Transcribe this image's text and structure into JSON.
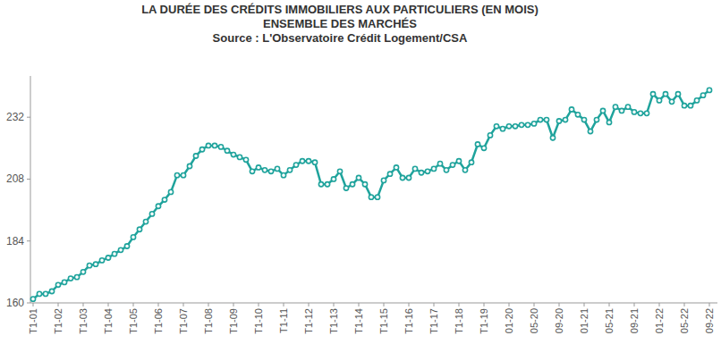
{
  "chart_data": {
    "type": "line",
    "title": "LA DURÉE DES CRÉDITS IMMOBILIERS AUX PARTICULIERS (EN MOIS)",
    "subtitle": "ENSEMBLE DES MARCHÉS",
    "source": "Source : L'Observatoire Crédit Logement/CSA",
    "categories": [
      "T1-01",
      null,
      null,
      null,
      "T1-02",
      null,
      null,
      null,
      "T1-03",
      null,
      null,
      null,
      "T1-04",
      null,
      null,
      null,
      "T1-05",
      null,
      null,
      null,
      "T1-06",
      null,
      null,
      null,
      "T1-07",
      null,
      null,
      null,
      "T1-08",
      null,
      null,
      null,
      "T1-09",
      null,
      null,
      null,
      "T1-10",
      null,
      null,
      null,
      "T1-11",
      null,
      null,
      null,
      "T1-12",
      null,
      null,
      null,
      "T1-13",
      null,
      null,
      null,
      "T1-14",
      null,
      null,
      null,
      "T1-15",
      null,
      null,
      null,
      "T1-16",
      null,
      null,
      null,
      "T1-17",
      null,
      null,
      null,
      "T1-18",
      null,
      null,
      null,
      "T1-19",
      null,
      null,
      null,
      "01-20",
      null,
      null,
      null,
      "05-20",
      null,
      null,
      null,
      "09-20",
      null,
      null,
      null,
      "01-21",
      null,
      null,
      null,
      "05-21",
      null,
      null,
      null,
      "09-21",
      null,
      null,
      null,
      "01-22",
      null,
      null,
      null,
      "05-22",
      null,
      null,
      null,
      "09-22"
    ],
    "values": [
      161.5,
      163.5,
      163.5,
      164.5,
      167,
      168,
      169.5,
      170,
      172,
      174.5,
      175,
      176.5,
      177.5,
      179,
      180.5,
      182,
      185.5,
      188.5,
      191.5,
      194.5,
      197.5,
      200,
      203,
      209.5,
      209.5,
      213,
      217,
      219.5,
      221,
      221,
      220.5,
      219,
      217.5,
      216.5,
      215.5,
      211,
      212.5,
      211.5,
      211,
      212,
      209.5,
      211.5,
      213.5,
      215,
      215,
      214.5,
      206,
      206,
      208,
      211,
      204.5,
      206,
      208.5,
      206,
      201,
      201,
      207.5,
      210,
      212.5,
      208.5,
      208.5,
      212,
      210.5,
      211,
      212,
      214,
      211.5,
      213.5,
      215,
      211.5,
      214.5,
      221.5,
      220,
      225,
      228.5,
      227.5,
      228.5,
      228.5,
      229,
      229,
      229.5,
      231,
      231,
      224,
      230.5,
      231,
      235,
      233,
      231,
      226.5,
      231,
      234.5,
      230,
      236,
      234.5,
      236,
      234,
      233.5,
      233.5,
      241,
      238.5,
      241,
      238,
      241,
      236.5,
      236.5,
      238.5,
      240.5,
      242.5
    ],
    "color": "#1fa39c",
    "marker": "circle",
    "ylim": [
      160,
      248
    ],
    "yticks": [
      160,
      184,
      208,
      232
    ],
    "grid": false
  }
}
